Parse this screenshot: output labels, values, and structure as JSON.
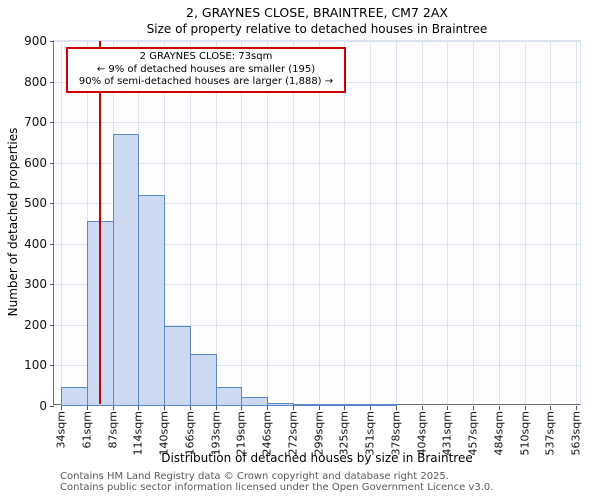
{
  "title": "2, GRAYNES CLOSE, BRAINTREE, CM7 2AX",
  "subtitle": "Size of property relative to detached houses in Braintree",
  "annotation": {
    "line1": "2 GRAYNES CLOSE: 73sqm",
    "line2": "← 9% of detached houses are smaller (195)",
    "line3": "90% of semi-detached houses are larger (1,888) →"
  },
  "footer": {
    "line1": "Contains HM Land Registry data © Crown copyright and database right 2025.",
    "line2": "Contains public sector information licensed under the Open Government Licence v3.0."
  },
  "chart_data": {
    "type": "bar",
    "title": "2, GRAYNES CLOSE, BRAINTREE, CM7 2AX - Size of property relative to detached houses in Braintree",
    "xlabel": "Distribution of detached houses by size in Braintree",
    "ylabel": "Number of detached properties",
    "ylim": [
      0,
      900
    ],
    "ytick_step": 100,
    "ytick_labels": [
      "0",
      "100",
      "200",
      "300",
      "400",
      "500",
      "600",
      "700",
      "800",
      "900"
    ],
    "bin_edges_sqm": [
      34,
      61,
      87,
      114,
      140,
      166,
      193,
      219,
      246,
      272,
      299,
      325,
      351,
      378,
      404,
      431,
      457,
      484,
      510,
      537,
      563
    ],
    "tick_labels": [
      "34sqm",
      "61sqm",
      "87sqm",
      "114sqm",
      "140sqm",
      "166sqm",
      "193sqm",
      "219sqm",
      "246sqm",
      "272sqm",
      "299sqm",
      "325sqm",
      "351sqm",
      "378sqm",
      "404sqm",
      "431sqm",
      "457sqm",
      "484sqm",
      "510sqm",
      "537sqm",
      "563sqm"
    ],
    "values": [
      47,
      455,
      670,
      520,
      197,
      128,
      47,
      22,
      8,
      4,
      3,
      3,
      2,
      0,
      0,
      0,
      0,
      0,
      0,
      0
    ],
    "marker": {
      "value_sqm": 73,
      "label": "2 GRAYNES CLOSE: 73sqm"
    },
    "grid": true,
    "legend": false,
    "colors": {
      "bar_fill": "#ccdaf1",
      "bar_border": "#5a87c9",
      "marker": "#cc0000",
      "grid": "#dde3f0",
      "annotation_border": "#cc0000"
    }
  }
}
